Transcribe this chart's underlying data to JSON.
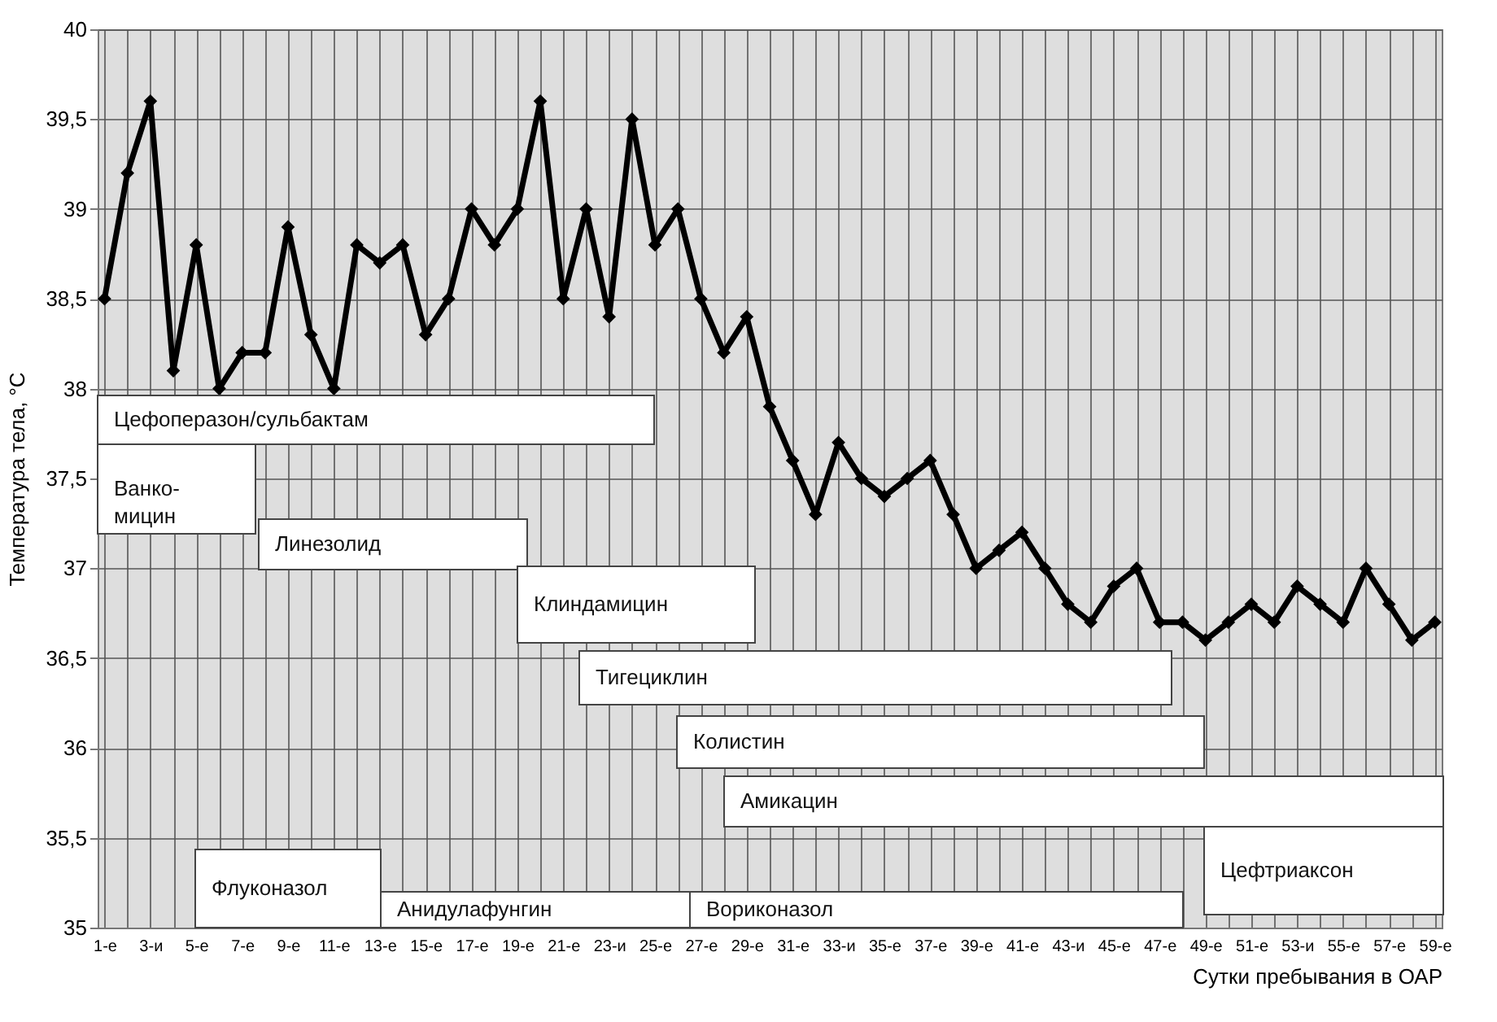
{
  "chart_data": {
    "type": "line",
    "xlabel": "Сутки пребывания в ОАР",
    "ylabel": "Температура тела, °C",
    "categories": [
      "1-е",
      null,
      "3-и",
      null,
      "5-е",
      null,
      "7-е",
      null,
      "9-е",
      null,
      "11-е",
      null,
      "13-е",
      null,
      "15-е",
      null,
      "17-е",
      null,
      "19-е",
      null,
      "21-е",
      null,
      "23-и",
      null,
      "25-е",
      null,
      "27-е",
      null,
      "29-е",
      null,
      "31-е",
      null,
      "33-и",
      null,
      "35-е",
      null,
      "37-е",
      null,
      "39-е",
      null,
      "41-е",
      null,
      "43-и",
      null,
      "45-е",
      null,
      "47-е",
      null,
      "49-е",
      null,
      "51-е",
      null,
      "53-и",
      null,
      "55-е",
      null,
      "57-е",
      null,
      "59-е"
    ],
    "series": [
      {
        "color": "#000000",
        "values": [
          38.5,
          39.2,
          39.6,
          38.1,
          38.8,
          38.0,
          38.2,
          38.2,
          38.9,
          38.3,
          38.0,
          38.8,
          38.7,
          38.8,
          38.3,
          38.5,
          39.0,
          38.8,
          39.0,
          39.6,
          38.5,
          39.0,
          38.4,
          39.5,
          38.8,
          39.0,
          38.5,
          38.2,
          38.4,
          37.9,
          37.6,
          37.3,
          37.7,
          37.5,
          37.4,
          37.5,
          37.6,
          37.3,
          37.0,
          37.1,
          37.2,
          37.0,
          36.8,
          36.7,
          36.9,
          37.0,
          36.7,
          36.7,
          36.6,
          36.7,
          36.8,
          36.7,
          36.9,
          36.8,
          36.7,
          37.0,
          36.8,
          36.6,
          36.7
        ]
      }
    ],
    "ylim": [
      35,
      40
    ],
    "yticks": [
      35,
      {
        "value": 35.5,
        "label": "35,5"
      },
      36,
      {
        "value": 36.5,
        "label": "36,5"
      },
      37,
      {
        "value": 37.5,
        "label": "37,5"
      },
      38,
      {
        "value": 38.5,
        "label": "38,5"
      },
      39,
      {
        "value": 39.5,
        "label": "39,5"
      },
      40
    ],
    "grid": true,
    "marker": "diamond",
    "line_style": "solid",
    "annotations": [
      "Цефоперазон/сульбактам",
      "Ванко-\nмицин",
      "Линезолид",
      "Клиндамицин",
      "Тигециклин",
      "Колистин",
      "Амикацин",
      "Цефтриаксон",
      "Флуконазол",
      "Анидулафунгин",
      "Вориконазол"
    ]
  }
}
